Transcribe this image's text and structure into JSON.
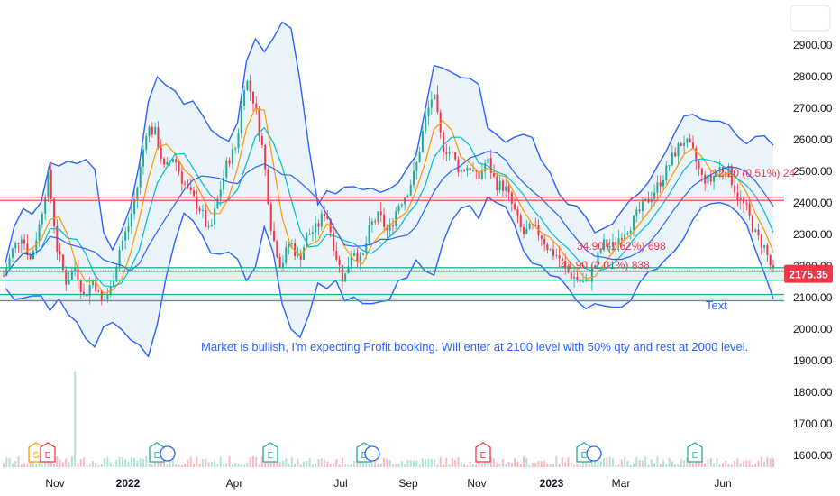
{
  "chart_data": {
    "type": "candlestick",
    "y_axis": {
      "ticks": [
        "2900.00",
        "2800.00",
        "2700.00",
        "2600.00",
        "2500.00",
        "2400.00",
        "2300.00",
        "2200.00",
        "2100.00",
        "2000.00",
        "1900.00",
        "1800.00",
        "1700.00",
        "1600.00"
      ],
      "ylim": [
        1560,
        2980
      ]
    },
    "x_axis": {
      "ticks": [
        {
          "label": "Nov",
          "bold": false
        },
        {
          "label": "2022",
          "bold": true
        },
        {
          "label": "Apr",
          "bold": false
        },
        {
          "label": "Jul",
          "bold": false
        },
        {
          "label": "Sep",
          "bold": false
        },
        {
          "label": "Nov",
          "bold": false
        },
        {
          "label": "2023",
          "bold": true
        },
        {
          "label": "Mar",
          "bold": false
        },
        {
          "label": "Jun",
          "bold": false
        }
      ]
    },
    "last_price": "2175.35",
    "horizontal_lines": [
      {
        "level": 2418,
        "color": "#f23645"
      },
      {
        "level": 2408,
        "color": "#f23645"
      },
      {
        "level": 2195,
        "color": "#22ab94"
      },
      {
        "level": 2183,
        "color": "#22ab94"
      },
      {
        "level": 2155,
        "color": "#22ab94"
      },
      {
        "level": 2110,
        "color": "#22ab94"
      },
      {
        "level": 2090,
        "color": "#22ab94"
      }
    ],
    "zones": [
      {
        "from": 2155,
        "to": 2195
      },
      {
        "from": 2090,
        "to": 2110
      }
    ],
    "annotations": [
      {
        "text": "34.90 (1.62%) 698",
        "color": "#f23645"
      },
      {
        "text": "41.90 (2.01%) 838",
        "color": "#f23645"
      },
      {
        "text": "12.20 (0.51%) 24",
        "color": "#f23645"
      },
      {
        "text": "Text",
        "color": "#2962ff"
      },
      {
        "text": "Market is bullish, I'm expecting Profit booking. Will enter at 2100 level with 50% qty and rest at 2000 level.",
        "color": "#2962ff"
      }
    ],
    "price_series": [
      2170,
      2250,
      2300,
      2220,
      2330,
      2490,
      2250,
      2150,
      2200,
      2100,
      2160,
      2080,
      2130,
      2260,
      2330,
      2460,
      2640,
      2620,
      2500,
      2550,
      2470,
      2420,
      2380,
      2300,
      2420,
      2530,
      2580,
      2800,
      2720,
      2560,
      2300,
      2200,
      2280,
      2220,
      2300,
      2320,
      2380,
      2250,
      2150,
      2260,
      2210,
      2330,
      2360,
      2300,
      2390,
      2430,
      2500,
      2650,
      2750,
      2580,
      2560,
      2500,
      2520,
      2470,
      2540,
      2460,
      2450,
      2380,
      2300,
      2320,
      2300,
      2250,
      2230,
      2180,
      2160,
      2140,
      2200,
      2270,
      2260,
      2300,
      2330,
      2370,
      2410,
      2450,
      2500,
      2560,
      2600,
      2560,
      2480,
      2470,
      2510,
      2500,
      2420,
      2380,
      2300,
      2260,
      2175
    ],
    "series": [
      {
        "name": "",
        "color": "#ff9800"
      },
      {
        "name": "",
        "color": "#00bcd4"
      },
      {
        "name": "",
        "color": "#2962ff"
      }
    ],
    "event_markers": [
      "S",
      "E",
      "E",
      "E",
      "E",
      "E",
      "E",
      "E",
      "E"
    ],
    "colors": {
      "up": "#22ab94",
      "down": "#f23645",
      "band": "#2962ff",
      "band_fill": "#e3eefa",
      "ma_fast": "#ff9800",
      "ma_mid": "#00bcd4",
      "ma_slow": "#2962ff"
    }
  }
}
